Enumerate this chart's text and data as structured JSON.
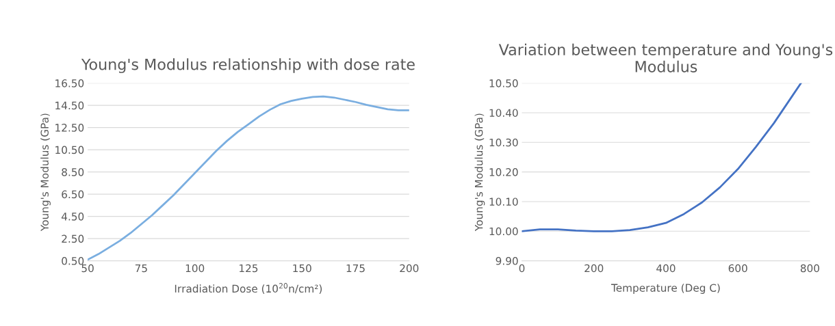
{
  "chart_data": [
    {
      "type": "line",
      "title": "Young's Modulus relationship with dose rate",
      "xlabel": "Irradiation Dose (10$^{20}$n/cm²)",
      "ylabel": "Young's Modulus (GPa)",
      "series": [
        {
          "color": "#7aaee0",
          "x": [
            50,
            55,
            60,
            65,
            70,
            75,
            80,
            85,
            90,
            95,
            100,
            105,
            110,
            115,
            120,
            125,
            130,
            135,
            140,
            145,
            150,
            155,
            160,
            165,
            170,
            175,
            180,
            185,
            190,
            195,
            200
          ],
          "values": [
            0.6,
            1.1,
            1.7,
            2.3,
            3.0,
            3.8,
            4.6,
            5.5,
            6.4,
            7.4,
            8.4,
            9.4,
            10.4,
            11.3,
            12.1,
            12.8,
            13.5,
            14.1,
            14.6,
            14.9,
            15.1,
            15.25,
            15.3,
            15.2,
            15.0,
            14.8,
            14.55,
            14.35,
            14.15,
            14.05,
            14.05
          ]
        }
      ],
      "xlim": [
        50,
        200
      ],
      "xticks": [
        50,
        75,
        100,
        125,
        150,
        175,
        200
      ],
      "ylim": [
        0.5,
        16.5
      ],
      "yticks": [
        {
          "value": 0.5,
          "label": "0.50"
        },
        {
          "value": 2.5,
          "label": "2.50"
        },
        {
          "value": 4.5,
          "label": "4.50"
        },
        {
          "value": 6.5,
          "label": "6.50"
        },
        {
          "value": 8.5,
          "label": "8.50"
        },
        {
          "value": 10.5,
          "label": "10.50"
        },
        {
          "value": 12.5,
          "label": "12.50"
        },
        {
          "value": 14.5,
          "label": "14.50"
        },
        {
          "value": 16.5,
          "label": "16.50"
        }
      ],
      "grid": "y",
      "marker": "none",
      "line_style": "solid",
      "legend": false
    },
    {
      "type": "line",
      "title": "Variation between temperature and Young's Modulus",
      "xlabel": "Temperature (Deg C)",
      "ylabel": "Young's Modulus (GPa)",
      "series": [
        {
          "color": "#4472c4",
          "x": [
            0,
            50,
            100,
            150,
            200,
            250,
            300,
            350,
            400,
            450,
            500,
            550,
            600,
            650,
            700,
            750,
            775
          ],
          "values": [
            10.0,
            10.006,
            10.006,
            10.002,
            10.0,
            10.0,
            10.004,
            10.013,
            10.028,
            10.058,
            10.097,
            10.148,
            10.21,
            10.285,
            10.365,
            10.455,
            10.5
          ]
        }
      ],
      "xlim": [
        0,
        800
      ],
      "xticks": [
        0,
        200,
        400,
        600,
        800
      ],
      "ylim": [
        9.9,
        10.5
      ],
      "yticks": [
        {
          "value": 9.9,
          "label": "9.90"
        },
        {
          "value": 10.0,
          "label": "10.00"
        },
        {
          "value": 10.1,
          "label": "10.10"
        },
        {
          "value": 10.2,
          "label": "10.20"
        },
        {
          "value": 10.3,
          "label": "10.30"
        },
        {
          "value": 10.4,
          "label": "10.40"
        },
        {
          "value": 10.5,
          "label": "10.50"
        }
      ],
      "grid": "y",
      "marker": "none",
      "line_style": "solid",
      "legend": false
    }
  ]
}
